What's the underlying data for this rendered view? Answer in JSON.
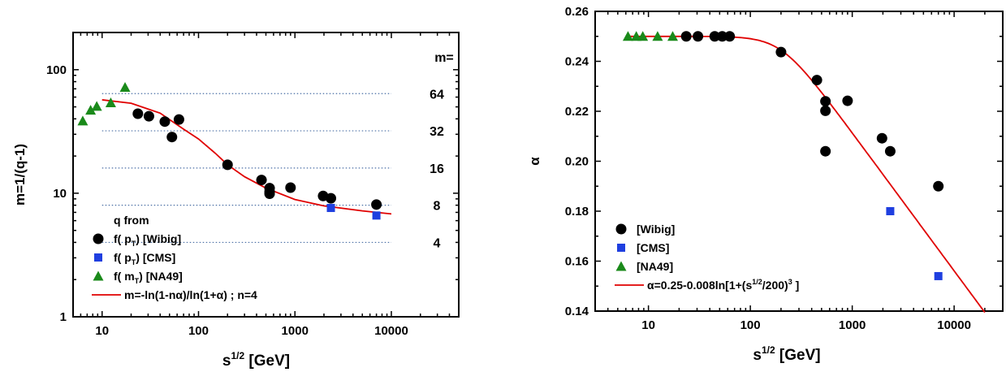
{
  "colors": {
    "wibig": "#000000",
    "cms": "#1f3fe0",
    "na49": "#1a8a1a",
    "curve": "#e00000",
    "ref": "#4a6fa5"
  },
  "chart_data": [
    {
      "type": "scatter",
      "x_scale": "log",
      "y_scale": "log",
      "xlim": [
        5,
        50000
      ],
      "ylim": [
        1,
        200
      ],
      "xlabel": "s",
      "xlabel_sup": "1/2",
      "xlabel_unit": "[GeV]",
      "ylabel": "m=1/(q-1)",
      "xticks": [
        10,
        100,
        1000,
        10000
      ],
      "xtick_labels": [
        "10",
        "100",
        "1000",
        "10000"
      ],
      "yticks": [
        1,
        10,
        100
      ],
      "ytick_labels": [
        "1",
        "10",
        "100"
      ],
      "m_header": "m=",
      "m_levels": [
        {
          "value": 64,
          "label": "64"
        },
        {
          "value": 32,
          "label": "32"
        },
        {
          "value": 16,
          "label": "16"
        },
        {
          "value": 8,
          "label": "8"
        },
        {
          "value": 4,
          "label": "4"
        }
      ],
      "legend_title": "q from",
      "legend": [
        {
          "label_pre": "f( p",
          "label_sub": "T",
          "label_post": ") [Wibig]"
        },
        {
          "label_pre": "f( p",
          "label_sub": "T",
          "label_post": ") [CMS]"
        },
        {
          "label_pre": "f( m",
          "label_sub": "T",
          "label_post": ") [NA49]"
        },
        {
          "label": "m=-ln(1-nα)/ln(1+α) ; n=4"
        }
      ],
      "series": [
        {
          "marker": "circle",
          "points": [
            [
              23.5,
              44
            ],
            [
              30.6,
              42
            ],
            [
              44.7,
              38
            ],
            [
              53,
              28.5
            ],
            [
              62.7,
              39.5
            ],
            [
              200,
              17
            ],
            [
              450,
              12.8
            ],
            [
              546,
              11
            ],
            [
              546,
              10.3
            ],
            [
              546,
              9.9
            ],
            [
              900,
              11.1
            ],
            [
              1960,
              9.5
            ],
            [
              2360,
              9.1
            ],
            [
              7000,
              8.1
            ]
          ]
        },
        {
          "marker": "square",
          "points": [
            [
              2360,
              7.6
            ],
            [
              7000,
              6.6
            ]
          ]
        },
        {
          "marker": "triangle",
          "points": [
            [
              6.3,
              38.5
            ],
            [
              7.6,
              47
            ],
            [
              8.8,
              50.5
            ],
            [
              12.3,
              54
            ],
            [
              17.3,
              72
            ]
          ]
        },
        {
          "marker": "line",
          "points": [
            [
              10,
              57
            ],
            [
              20,
              53.5
            ],
            [
              40,
              44.5
            ],
            [
              70,
              33
            ],
            [
              100,
              27.5
            ],
            [
              150,
              21
            ],
            [
              200,
              17
            ],
            [
              300,
              13.6
            ],
            [
              500,
              11
            ],
            [
              1000,
              8.9
            ],
            [
              2000,
              7.9
            ],
            [
              5000,
              7.2
            ],
            [
              10000,
              6.8
            ]
          ]
        }
      ]
    },
    {
      "type": "scatter",
      "x_scale": "log",
      "y_scale": "linear",
      "xlim": [
        3,
        30000
      ],
      "ylim": [
        0.14,
        0.26
      ],
      "xlabel": "s",
      "xlabel_sup": "1/2",
      "xlabel_unit": "[GeV]",
      "ylabel": "α",
      "xticks": [
        10,
        100,
        1000,
        10000
      ],
      "xtick_labels": [
        "10",
        "100",
        "1000",
        "10000"
      ],
      "yticks": [
        0.14,
        0.16,
        0.18,
        0.2,
        0.22,
        0.24,
        0.26
      ],
      "ytick_labels": [
        "0.14",
        "0.16",
        "0.18",
        "0.20",
        "0.22",
        "0.24",
        "0.26"
      ],
      "legend": [
        {
          "label": "[Wibig]"
        },
        {
          "label": "[CMS]"
        },
        {
          "label": "[NA49]"
        },
        {
          "label_pre": "α=0.25-0.008ln[1+(s",
          "label_sup": "1/2",
          "label_mid": "/200)",
          "label_sup2": "3",
          "label_post": " ]"
        }
      ],
      "series": [
        {
          "marker": "circle",
          "points": [
            [
              23.5,
              0.25
            ],
            [
              30.6,
              0.25
            ],
            [
              44.7,
              0.25
            ],
            [
              53,
              0.25
            ],
            [
              62.7,
              0.25
            ],
            [
              200,
              0.2437
            ],
            [
              450,
              0.2325
            ],
            [
              546,
              0.224
            ],
            [
              546,
              0.2202
            ],
            [
              546,
              0.204
            ],
            [
              900,
              0.2242
            ],
            [
              1960,
              0.2092
            ],
            [
              2360,
              0.204
            ],
            [
              7000,
              0.19
            ]
          ]
        },
        {
          "marker": "square",
          "points": [
            [
              2360,
              0.18
            ],
            [
              7000,
              0.154
            ]
          ]
        },
        {
          "marker": "triangle",
          "points": [
            [
              6.3,
              0.25
            ],
            [
              7.6,
              0.25
            ],
            [
              8.8,
              0.25
            ],
            [
              12.3,
              0.25
            ],
            [
              17.3,
              0.25
            ]
          ]
        },
        {
          "marker": "line",
          "formula": "0.25-0.008*ln(1+(x/200)^3)",
          "x_range": [
            6.3,
            20000
          ]
        }
      ]
    }
  ]
}
